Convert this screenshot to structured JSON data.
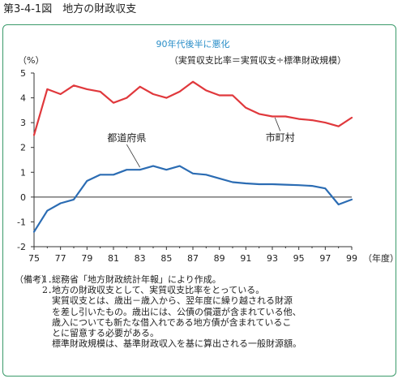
{
  "figure_title": "第3-4-1図　地方の財政収支",
  "chart_data": {
    "type": "line",
    "subtitle": "90年代後半に悪化",
    "formula": "（実質収支比率＝実質収支÷標準財政規模）",
    "ylabel": "（%）",
    "xlabel": "（年度）",
    "ylim": [
      -2,
      5
    ],
    "yticks": [
      5,
      4,
      3,
      2,
      1,
      0,
      -1,
      -2
    ],
    "ytick_labels": [
      "5",
      "4",
      "3",
      "2",
      "1",
      "0",
      "-1",
      "-2"
    ],
    "xlim": [
      1975,
      1999
    ],
    "xticks": [
      "75",
      "77",
      "79",
      "81",
      "83",
      "85",
      "87",
      "89",
      "91",
      "93",
      "95",
      "97",
      "99"
    ],
    "x": [
      1975,
      1976,
      1977,
      1978,
      1979,
      1980,
      1981,
      1982,
      1983,
      1984,
      1985,
      1986,
      1987,
      1988,
      1989,
      1990,
      1991,
      1992,
      1993,
      1994,
      1995,
      1996,
      1997,
      1998,
      1999
    ],
    "grid": false,
    "series": [
      {
        "name": "市町村",
        "color": "#e0383c",
        "values": [
          2.5,
          4.35,
          4.15,
          4.5,
          4.35,
          4.25,
          3.8,
          4.0,
          4.45,
          4.15,
          4.0,
          4.25,
          4.65,
          4.3,
          4.1,
          4.1,
          3.6,
          3.35,
          3.25,
          3.25,
          3.15,
          3.1,
          3.0,
          2.85,
          3.2
        ]
      },
      {
        "name": "都道府県",
        "color": "#2b6cb3",
        "values": [
          -1.4,
          -0.55,
          -0.25,
          -0.1,
          0.65,
          0.9,
          0.9,
          1.1,
          1.1,
          1.25,
          1.1,
          1.25,
          0.95,
          0.9,
          0.75,
          0.6,
          0.55,
          0.52,
          0.52,
          0.5,
          0.48,
          0.45,
          0.35,
          -0.3,
          -0.1
        ]
      }
    ]
  },
  "notes": {
    "head": "（備考）",
    "items": [
      {
        "num": "1．",
        "text": "総務省「地方財政統計年報」により作成。"
      },
      {
        "num": "2．",
        "text": "地方の財政収支として、実質収支比率をとっている。"
      }
    ],
    "continuation": [
      "実質収支とは、歳出－歳入から、翌年度に繰り越される財源",
      "を差し引いたもの。歳出には、公債の償還が含まれている他、",
      "歳入についても新たな借入れである地方債が含まれているこ",
      "とに留意する必要がある。",
      "標準財政規模は、基準財政収入を基に算出される一般財源額。"
    ]
  },
  "colors": {
    "frame": "#3a9a6a",
    "subtitle": "#2a8ec8",
    "axis": "#333333"
  }
}
